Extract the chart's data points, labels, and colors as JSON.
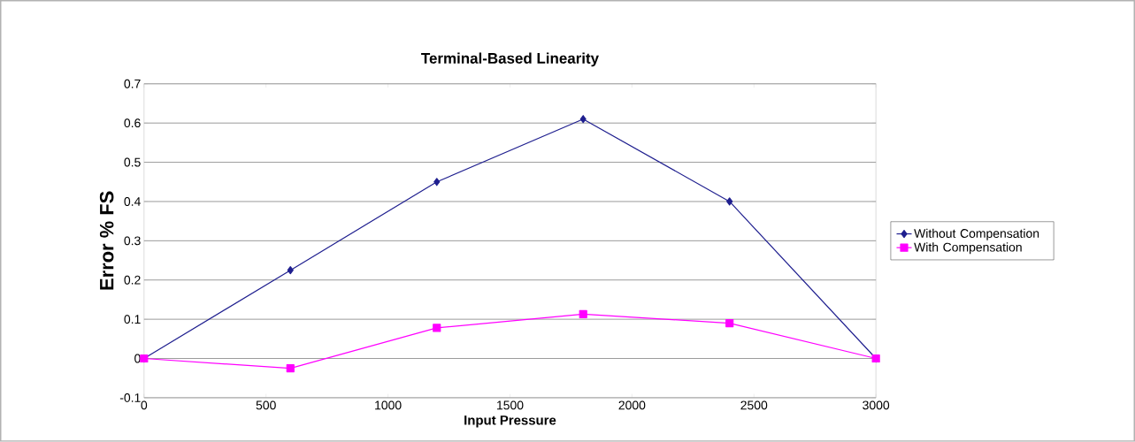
{
  "chart_data": {
    "type": "line",
    "title": "Terminal-Based Linearity",
    "xlabel": "Input Pressure",
    "ylabel": "Error % FS",
    "x": [
      0,
      600,
      1200,
      1800,
      2400,
      3000
    ],
    "series": [
      {
        "name": "Without Compensation",
        "color": "#1f1f8f",
        "marker": "diamond",
        "values": [
          0,
          0.225,
          0.45,
          0.61,
          0.4,
          0
        ]
      },
      {
        "name": "With Compensation",
        "color": "#ff00ff",
        "marker": "square",
        "values": [
          0,
          -0.025,
          0.078,
          0.113,
          0.09,
          0
        ]
      }
    ],
    "xlim": [
      0,
      3000
    ],
    "xticks": [
      0,
      500,
      1000,
      1500,
      2000,
      2500,
      3000
    ],
    "ylim": [
      -0.1,
      0.7
    ],
    "yticks": [
      -0.1,
      0,
      0.1,
      0.2,
      0.3,
      0.4,
      0.5,
      0.6,
      0.7
    ],
    "grid": "y",
    "legend": "right",
    "line_style": "solid"
  }
}
